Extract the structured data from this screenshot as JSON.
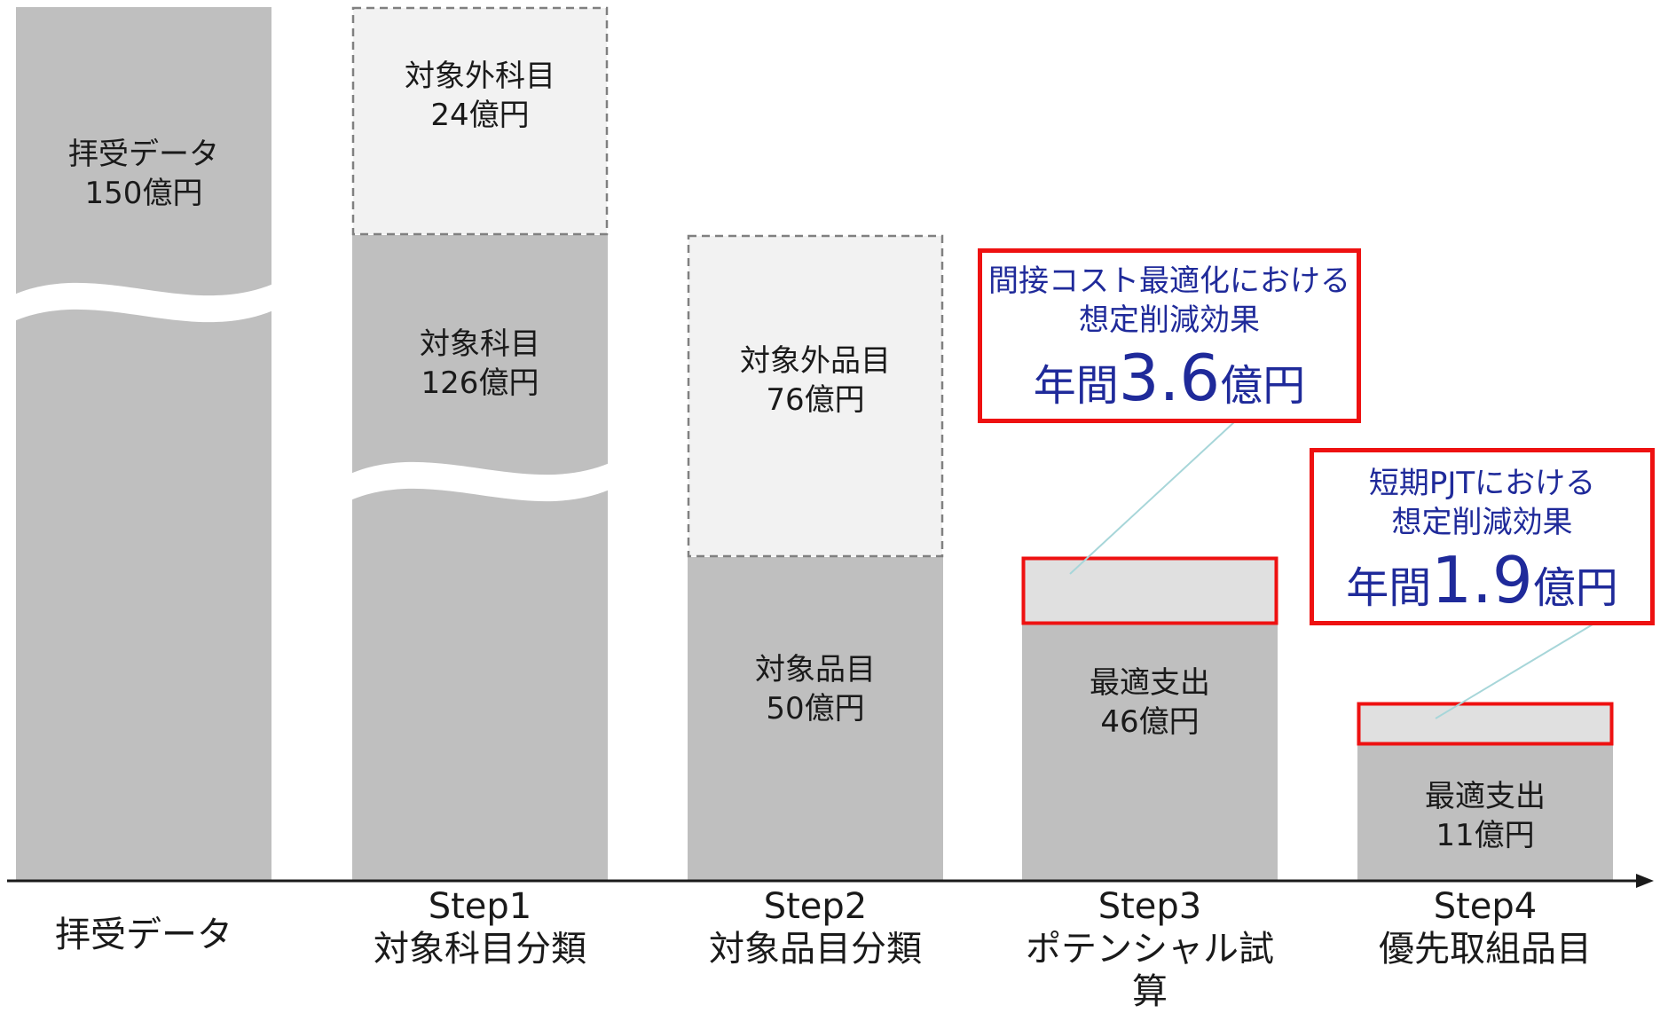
{
  "chart_data": {
    "type": "bar",
    "categories": [
      {
        "step": "",
        "name": "拝受データ"
      },
      {
        "step": "Step1",
        "name": "対象科目分類"
      },
      {
        "step": "Step2",
        "name": "対象品目分類"
      },
      {
        "step": "Step3",
        "name": "ポテンシャル試算"
      },
      {
        "step": "Step4",
        "name": "優先取組品目"
      }
    ],
    "bars": [
      {
        "segments": [
          {
            "label": "拝受データ",
            "value_text": "150億円",
            "value": 150,
            "style": "solid",
            "broken": true
          }
        ]
      },
      {
        "segments": [
          {
            "label": "対象科目",
            "value_text": "126億円",
            "value": 126,
            "style": "solid",
            "broken": true
          },
          {
            "label": "対象外科目",
            "value_text": "24億円",
            "value": 24,
            "style": "dashed"
          }
        ]
      },
      {
        "segments": [
          {
            "label": "対象品目",
            "value_text": "50億円",
            "value": 50,
            "style": "solid"
          },
          {
            "label": "対象外品目",
            "value_text": "76億円",
            "value": 76,
            "style": "dashed"
          }
        ]
      },
      {
        "segments": [
          {
            "label": "最適支出",
            "value_text": "46億円",
            "value": 46,
            "style": "solid"
          },
          {
            "label": "",
            "value_text": "",
            "value": 3.6,
            "style": "highlight"
          }
        ]
      },
      {
        "segments": [
          {
            "label": "最適支出",
            "value_text": "11億円",
            "value": 11,
            "style": "solid"
          },
          {
            "label": "",
            "value_text": "",
            "value": 1.9,
            "style": "highlight"
          }
        ]
      }
    ],
    "callouts": [
      {
        "line1": "間接コスト最適化における",
        "line2": "想定削減効果",
        "prefix": "年間",
        "number": "3.6",
        "suffix": "億円",
        "target_bar": 3
      },
      {
        "line1": "短期PJTにおける",
        "line2": "想定削減効果",
        "prefix": "年間",
        "number": "1.9",
        "suffix": "億円",
        "target_bar": 4
      }
    ]
  },
  "colors": {
    "bar": "#bfbfbf",
    "dashed_fill": "#f2f2f2",
    "dashed_border": "#808080",
    "highlight_fill": "#e0e0e0",
    "highlight_border": "#ee1111",
    "callout_text": "#1f2a9a",
    "leader_line": "#a7d6d9",
    "axis": "#1a1a1a"
  }
}
